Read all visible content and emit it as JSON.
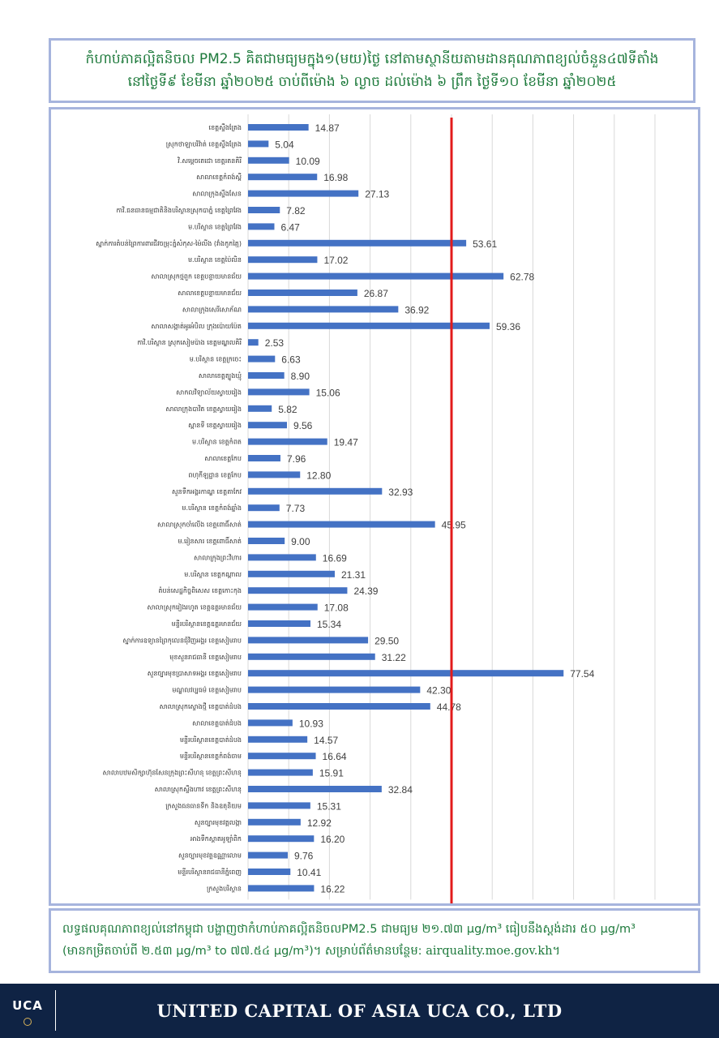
{
  "title": {
    "line1": "កំហាប់ភាគល្អិតនិចល PM2.5 គិតជាមធ្យមក្នុង១(មយ)ថ្ងៃ នៅតាមស្ថានីយតាមដានគុណភាពខ្យល់ចំនួន៤៧ទីតាំង",
    "line2": "នៅថ្ងៃទី៩ ខែមីនា ឆ្នាំ២០២៥ ចាប់ពីម៉ោង ៦ ល្ងាច ដល់ម៉ោង ៦ ព្រឹក ថ្ងៃទី១០ ខែមីនា ឆ្នាំ២០២៥"
  },
  "chart_data": {
    "type": "bar",
    "orientation": "horizontal",
    "categories": [
      "ខេត្តស្ទឹងត្រែង",
      "ស្រុកថាឡាបរិវ៉ាត់ ខេត្តស្ទឹងត្រែង",
      "វិ.សម្ដេចតេជោ ខេត្តរតនគិរី",
      "សាលាខេត្តកំពង់ស្ពឺ",
      "សាលាក្រុងស្ទឹងសែន",
      "កាវិ.ធនធានធម្មជាតិនិងបរិស្ថានស្រុកបាភ្នំ ខេត្តព្រៃវែង",
      "ម.បរិស្ថាន ខេត្តព្រៃវែង",
      "ស្នាក់ការតំបន់ព្រៃការពារជីវចម្រុះភ្នំសំកុស-ម៉ៃលីង (វាំងកូកត្មៃ)",
      "ម.បរិស្ថាន ខេត្តប៉ៃលិន",
      "សាលាស្រុកថ្មពួក ខេត្តបន្ទាយមានជ័យ",
      "សាលាខេត្តបន្ទាយមានជ័យ",
      "សាលាក្រុងសេរីសោភ័ណ",
      "សាលាសង្កាត់អូរអំបិល ក្រុងប៉ោយប៉ែត",
      "កាវិ.បរិស្ថាន ស្រុកសៀមប៉ាង ខេត្តមណ្ឌលគិរី",
      "ម.បរិស្ថាន ខេត្តក្រចេះ",
      "សាលាខេត្តត្បូងឃ្មុំ",
      "សាកលវិទ្យាល័យស្វាយរៀង",
      "សាលាក្រុងបាវិត ខេត្តស្វាយរៀង",
      "ស្ពានទី ខេត្តស្វាយរៀង",
      "ម.បរិស្ថាន ខេត្តកំពត",
      "សាលាខេត្តកែប",
      "ពហុកីឡដ្ឋាន ខេត្តកែប",
      "សួនទឹកអង្គរកាណ្ឌ ខេត្តតាកែវ",
      "ម.បរិស្ថាន ខេត្តកំពង់ឆ្នាំង",
      "សាលាស្រុកចាំលើង ខេត្តពោធិ៍សាត់",
      "ម.រៀនសារ ខេត្តពោធិ៍សាត់",
      "សាលាក្រុងព្រះវិហារ",
      "ម.បរិស្ថាន ខេត្តកណ្ដាល",
      "តំបន់សេដ្ឋកិច្ចពិសេស ខេត្តកោះកុង",
      "សាលាស្រុករៀងរហូត ខេត្តឧត្ដរមានជ័យ",
      "មន្ទីរបរិស្ថានខេត្តឧត្ដរមានជ័យ",
      "ស្នាក់ការឧទ្យានព្រៃកុលេនជុំវិញអង្គរ ខេត្តសៀមរាប",
      "មុខសួនរាជធានី ខេត្តសៀមរាប",
      "សួនច្បារមុខប្រាសាទអង្គរ ខេត្តសៀមរាប",
      "មណ្ឌលវប្បធម៌ ខេត្តសៀមរាប",
      "សាលាស្រុកស្ទោងថ្មី ខេត្តបាត់ដំបង",
      "សាលាខេត្តបាត់ដំបង",
      "មន្ទីរបរិស្ថានខេត្តបាត់ដំបង",
      "មន្ទីរបរិស្ថានខេត្តកំពង់ចាម",
      "សាលាបឋមសិក្សាហ៊ុនសែនក្រុងព្រះសីហនុ ខេត្តព្រះសីហនុ",
      "សាលាស្រុកស្ទឹងហាវ ខេត្តព្រះសីហនុ",
      "ក្រសួងធនធានទឹក និងឧតុនិយម",
      "សួនច្បារមុខវត្តលង្កា",
      "អាងទឹកស្តាតអូឡាំពិក",
      "សួនច្បារមុខវត្តឧណ្ណាលោម",
      "មន្ទីរបរិស្ថានរាជធានីភ្នំពេញ",
      "ក្រសួងបរិស្ថាន"
    ],
    "values": [
      14.87,
      5.04,
      10.09,
      16.98,
      27.13,
      7.82,
      6.47,
      53.61,
      17.02,
      62.78,
      26.87,
      36.92,
      59.36,
      2.53,
      6.63,
      8.9,
      15.06,
      5.82,
      9.56,
      19.47,
      7.96,
      12.8,
      32.93,
      7.73,
      45.95,
      9.0,
      16.69,
      21.31,
      24.39,
      17.08,
      15.34,
      29.5,
      31.22,
      77.54,
      42.3,
      44.78,
      10.93,
      14.57,
      16.64,
      15.91,
      32.84,
      15.31,
      12.92,
      16.2,
      9.76,
      10.41,
      16.22
    ],
    "value_labels": [
      "14.87",
      "5.04",
      "10.09",
      "16.98",
      "27.13",
      "7.82",
      "6.47",
      "53.61",
      "17.02",
      "62.78",
      "26.87",
      "36.92",
      "59.36",
      "2.53",
      "6.63",
      "8.90",
      "15.06",
      "5.82",
      "9.56",
      "19.47",
      "7.96",
      "12.80",
      "32.93",
      "7.73",
      "45.95",
      "9.00",
      "16.69",
      "21.31",
      "24.39",
      "17.08",
      "15.34",
      "29.50",
      "31.22",
      "77.54",
      "42.30",
      "44.78",
      "10.93",
      "14.57",
      "16.64",
      "15.91",
      "32.84",
      "15.31",
      "12.92",
      "16.20",
      "9.76",
      "10.41",
      "16.22"
    ],
    "xlim": [
      0,
      100
    ],
    "xticks": [
      "0",
      "10",
      "20",
      "30",
      "40",
      "50",
      "60",
      "70",
      "80",
      "90",
      "100"
    ],
    "reference_line": 50,
    "bar_color": "#4472c4",
    "reference_color": "#e21b1b",
    "grid": true
  },
  "footnote": {
    "line1": "លទ្ធផលគុណភាពខ្យល់នៅកម្ពុជា បង្ហាញថាកំហាប់ភាគល្អិតនិចលPM2.5 ជាមធ្យម ២១.៧៣ µg/m³ ធៀបនឹងស្តង់ដារ ៥០ µg/m³",
    "line2_text": "(មានកម្រិតចាប់ពី ២.៥៣ µg/m³ to ៧៧.៥៤ µg/m³)។ សម្រាប់ព័ត៌មានបន្ថែម: ",
    "line2_link": "airquality.moe.gov.kh",
    "line2_end": "។"
  },
  "footer": {
    "logo": "UCA",
    "company": "UNITED CAPITAL OF ASIA UCA CO., LTD"
  }
}
